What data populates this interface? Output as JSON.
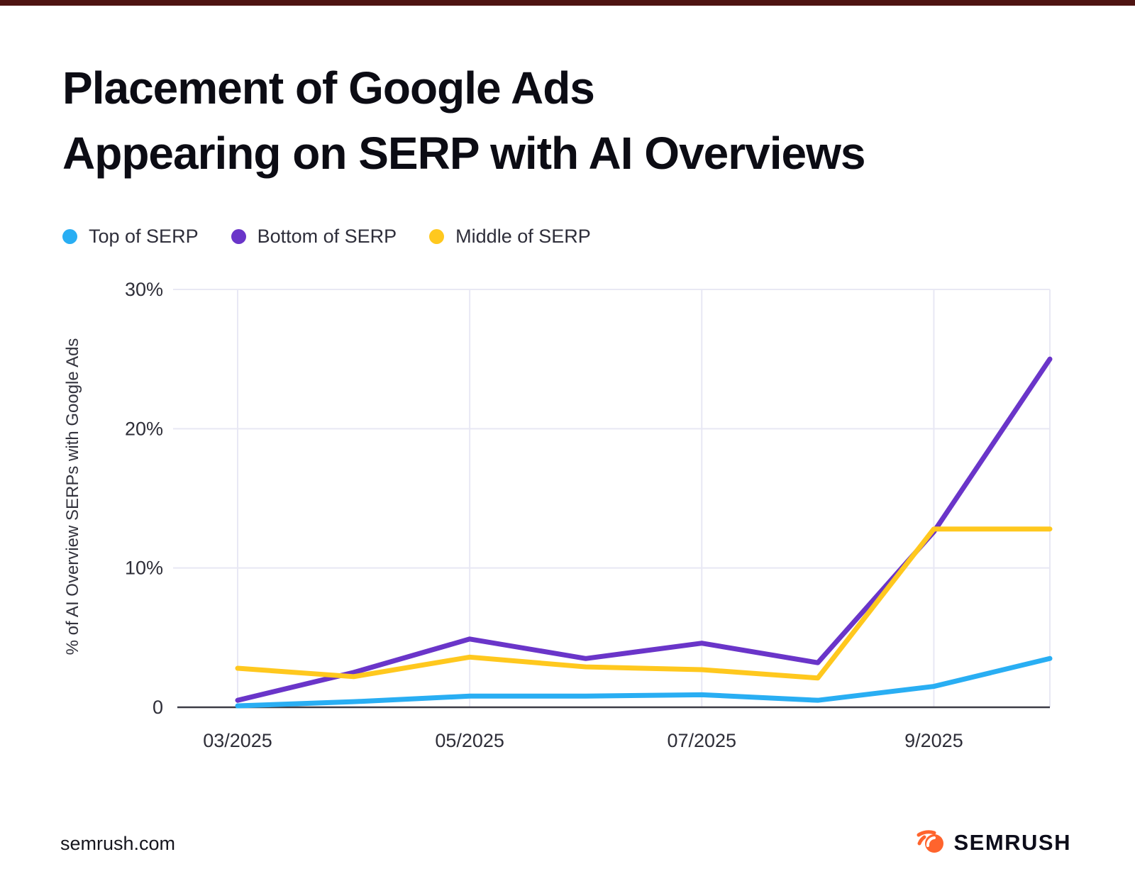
{
  "header": {
    "title_line1": "Placement of Google Ads",
    "title_line2": "Appearing on SERP with AI Overviews"
  },
  "legend": {
    "items": [
      {
        "label": "Top of SERP",
        "color": "#29AEF3"
      },
      {
        "label": "Bottom of SERP",
        "color": "#6A35C9"
      },
      {
        "label": "Middle of SERP",
        "color": "#FFC81E"
      }
    ]
  },
  "chart_data": {
    "type": "line",
    "x": [
      "03/2025",
      "04/2025",
      "05/2025",
      "06/2025",
      "07/2025",
      "08/2025",
      "9/2025",
      "10/2025"
    ],
    "x_tick_indices": [
      0,
      2,
      4,
      6
    ],
    "x_tick_labels": [
      "03/2025",
      "05/2025",
      "07/2025",
      "9/2025"
    ],
    "series": [
      {
        "name": "Top of SERP",
        "color": "#29AEF3",
        "values": [
          0.1,
          0.4,
          0.8,
          0.8,
          0.9,
          0.5,
          1.5,
          3.5
        ]
      },
      {
        "name": "Bottom of SERP",
        "color": "#6A35C9",
        "values": [
          0.5,
          2.5,
          4.9,
          3.5,
          4.6,
          3.2,
          12.6,
          25.0
        ]
      },
      {
        "name": "Middle of SERP",
        "color": "#FFC81E",
        "values": [
          2.8,
          2.2,
          3.6,
          2.9,
          2.7,
          2.1,
          12.8,
          12.8
        ]
      }
    ],
    "title": "Placement of Google Ads Appearing on SERP with AI Overviews",
    "xlabel": "",
    "ylabel": "% of AI Overview SERPs with Google Ads",
    "ylim": [
      0,
      30
    ],
    "yticks": [
      {
        "value": 0,
        "label": "0"
      },
      {
        "value": 10,
        "label": "10%"
      },
      {
        "value": 20,
        "label": "20%"
      },
      {
        "value": 30,
        "label": "30%"
      }
    ],
    "grid": true,
    "legend_position": "top-left"
  },
  "footer": {
    "site": "semrush.com",
    "brand": "SEMRUSH"
  },
  "colors": {
    "grid": "#E8E8F4",
    "axis": "#3C3C46",
    "tick_text": "#2E2E38",
    "brand_orange": "#FF642D"
  }
}
